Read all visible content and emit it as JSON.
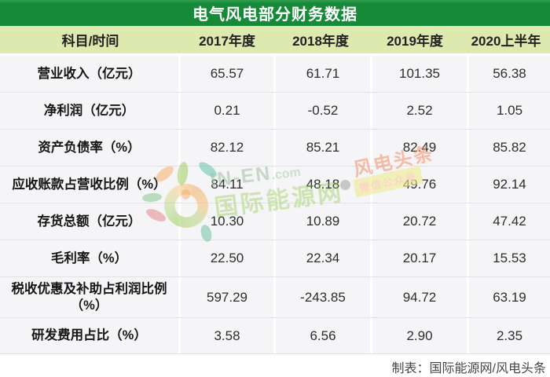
{
  "title": "电气风电部分财务数据",
  "table": {
    "header": [
      "科目/时间",
      "2017年度",
      "2018年度",
      "2019年度",
      "2020上半年"
    ],
    "rows": [
      {
        "label": "营业收入（亿元）",
        "values": [
          "65.57",
          "61.71",
          "101.35",
          "56.38"
        ]
      },
      {
        "label": "净利润（亿元）",
        "values": [
          "0.21",
          "-0.52",
          "2.52",
          "1.05"
        ]
      },
      {
        "label": "资产负债率（%）",
        "values": [
          "82.12",
          "85.21",
          "82.49",
          "85.82"
        ]
      },
      {
        "label": "应收账款占营收比例（%）",
        "values": [
          "84.11",
          "48.18",
          "49.76",
          "92.14"
        ]
      },
      {
        "label": "存货总额（亿元）",
        "values": [
          "10.30",
          "10.89",
          "20.72",
          "47.42"
        ]
      },
      {
        "label": "毛利率（%）",
        "values": [
          "22.50",
          "22.34",
          "20.17",
          "15.53"
        ]
      },
      {
        "label": "税收优惠及补助占利润比例（%）",
        "values": [
          "597.29",
          "-243.85",
          "94.72",
          "63.19"
        ]
      },
      {
        "label": "研发费用占比（%）",
        "values": [
          "3.58",
          "6.56",
          "2.90",
          "2.35"
        ]
      }
    ]
  },
  "footer": {
    "credit": "制表：国际能源网/风电头条"
  },
  "watermark": {
    "site_en": "IN-EN",
    "site_tld": ".com",
    "site_cn": "国际能源网",
    "brand": "风电头条",
    "badge": "微信公众号"
  },
  "colors": {
    "title_bar_green": "#178a3a",
    "header_bg": "#dde9ae",
    "row_bg": "#f5f5f7",
    "grid_line": "#e2e2e6",
    "watermark_green": "#8cc63f",
    "watermark_orange": "#f29462"
  },
  "chart_data": {
    "type": "table",
    "title": "电气风电部分财务数据",
    "columns": [
      "科目/时间",
      "2017年度",
      "2018年度",
      "2019年度",
      "2020上半年"
    ],
    "rows": [
      [
        "营业收入（亿元）",
        65.57,
        61.71,
        101.35,
        56.38
      ],
      [
        "净利润（亿元）",
        0.21,
        -0.52,
        2.52,
        1.05
      ],
      [
        "资产负债率（%）",
        82.12,
        85.21,
        82.49,
        85.82
      ],
      [
        "应收账款占营收比例（%）",
        84.11,
        48.18,
        49.76,
        92.14
      ],
      [
        "存货总额（亿元）",
        10.3,
        10.89,
        20.72,
        47.42
      ],
      [
        "毛利率（%）",
        22.5,
        22.34,
        20.17,
        15.53
      ],
      [
        "税收优惠及补助占利润比例（%）",
        597.29,
        -243.85,
        94.72,
        63.19
      ],
      [
        "研发费用占比（%）",
        3.58,
        6.56,
        2.9,
        2.35
      ]
    ],
    "note": "制表：国际能源网/风电头条"
  }
}
